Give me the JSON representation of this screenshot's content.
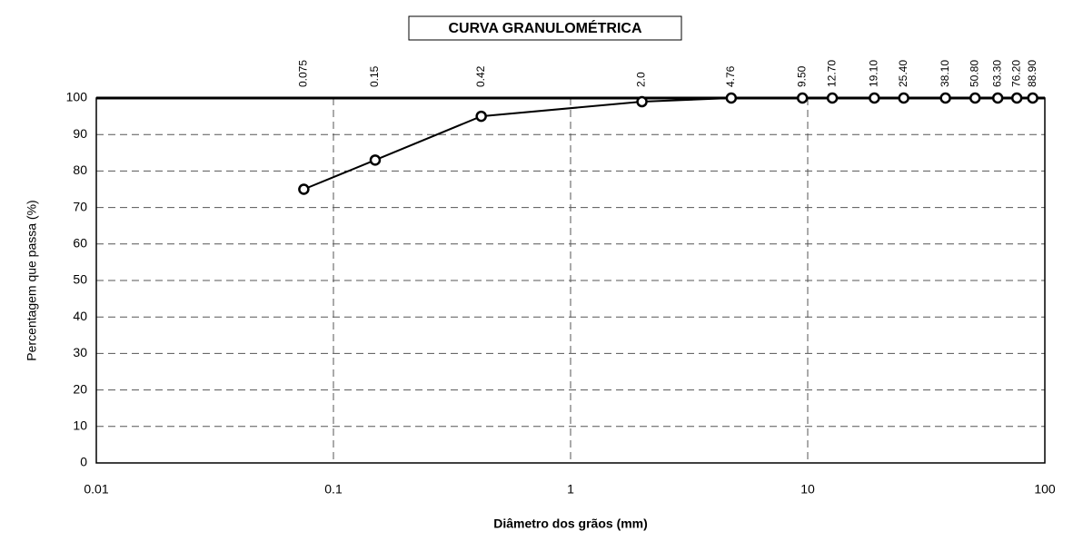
{
  "chart_data": {
    "type": "line",
    "title": "CURVA GRANULOMÉTRICA",
    "xlabel": "Diâmetro dos grãos (mm)",
    "ylabel": "Percentagem que passa (%)",
    "x": [
      0.075,
      0.15,
      0.42,
      2.0,
      4.76,
      9.5,
      12.7,
      19.1,
      25.4,
      38.1,
      50.8,
      63.3,
      76.2,
      88.9
    ],
    "sieve_labels": [
      "0.075",
      "0.15",
      "0.42",
      "2.0",
      "4.76",
      "9.50",
      "12.70",
      "19.10",
      "25.40",
      "38.10",
      "50.80",
      "63.30",
      "76.20",
      "88.90"
    ],
    "series": [
      {
        "color": "#000000",
        "values": [
          75,
          83,
          95,
          99,
          100,
          100,
          100,
          100,
          100,
          100,
          100,
          100,
          100,
          100
        ]
      }
    ],
    "xscale": "log",
    "xlim": [
      0.01,
      100
    ],
    "xticks": [
      0.01,
      0.1,
      1,
      10,
      100
    ],
    "ylim": [
      0,
      100
    ],
    "yticks": [
      0,
      10,
      20,
      30,
      40,
      50,
      60,
      70,
      80,
      90,
      100
    ],
    "grid": true
  }
}
